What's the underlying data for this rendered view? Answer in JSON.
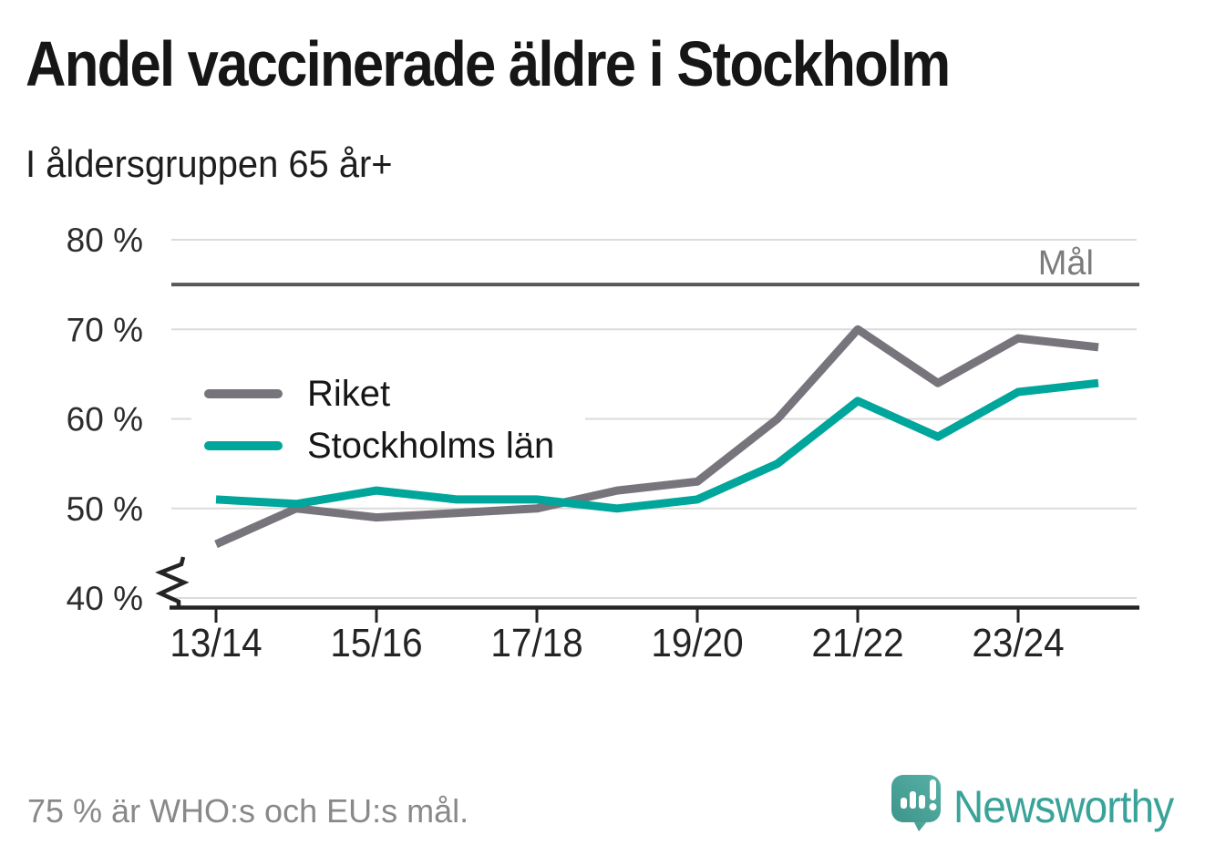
{
  "title": "Andel vaccinerade äldre i Stockholm",
  "subtitle": "I åldersgruppen 65 år+",
  "footnote": "75 % är WHO:s och EU:s mål.",
  "branding": {
    "name": "Newsworthy",
    "icon": "newsworthy-chart-bubble-icon",
    "color": "#3aa399"
  },
  "chart_data": {
    "type": "line",
    "x": [
      "13/14",
      "14/15",
      "15/16",
      "16/17",
      "17/18",
      "18/19",
      "19/20",
      "20/21",
      "21/22",
      "22/23",
      "23/24",
      "24/25"
    ],
    "xtick_every": 2,
    "series": [
      {
        "name": "Riket",
        "color": "#77757B",
        "values": [
          46,
          50,
          49,
          49.5,
          50,
          52,
          53,
          60,
          70,
          64,
          69,
          68
        ]
      },
      {
        "name": "Stockholms län",
        "color": "#00A69B",
        "values": [
          51,
          50.5,
          52,
          51,
          51,
          50,
          51,
          55,
          62,
          58,
          63,
          64
        ]
      }
    ],
    "target_line": {
      "label": "Mål",
      "value": 75,
      "color": "#58585A"
    },
    "ylim": [
      40,
      80
    ],
    "yticks": [
      80,
      70,
      60,
      50,
      40
    ],
    "ytick_suffix": " %",
    "axis_break": true,
    "grid": "horizontal",
    "legend_position": "inside-left"
  }
}
